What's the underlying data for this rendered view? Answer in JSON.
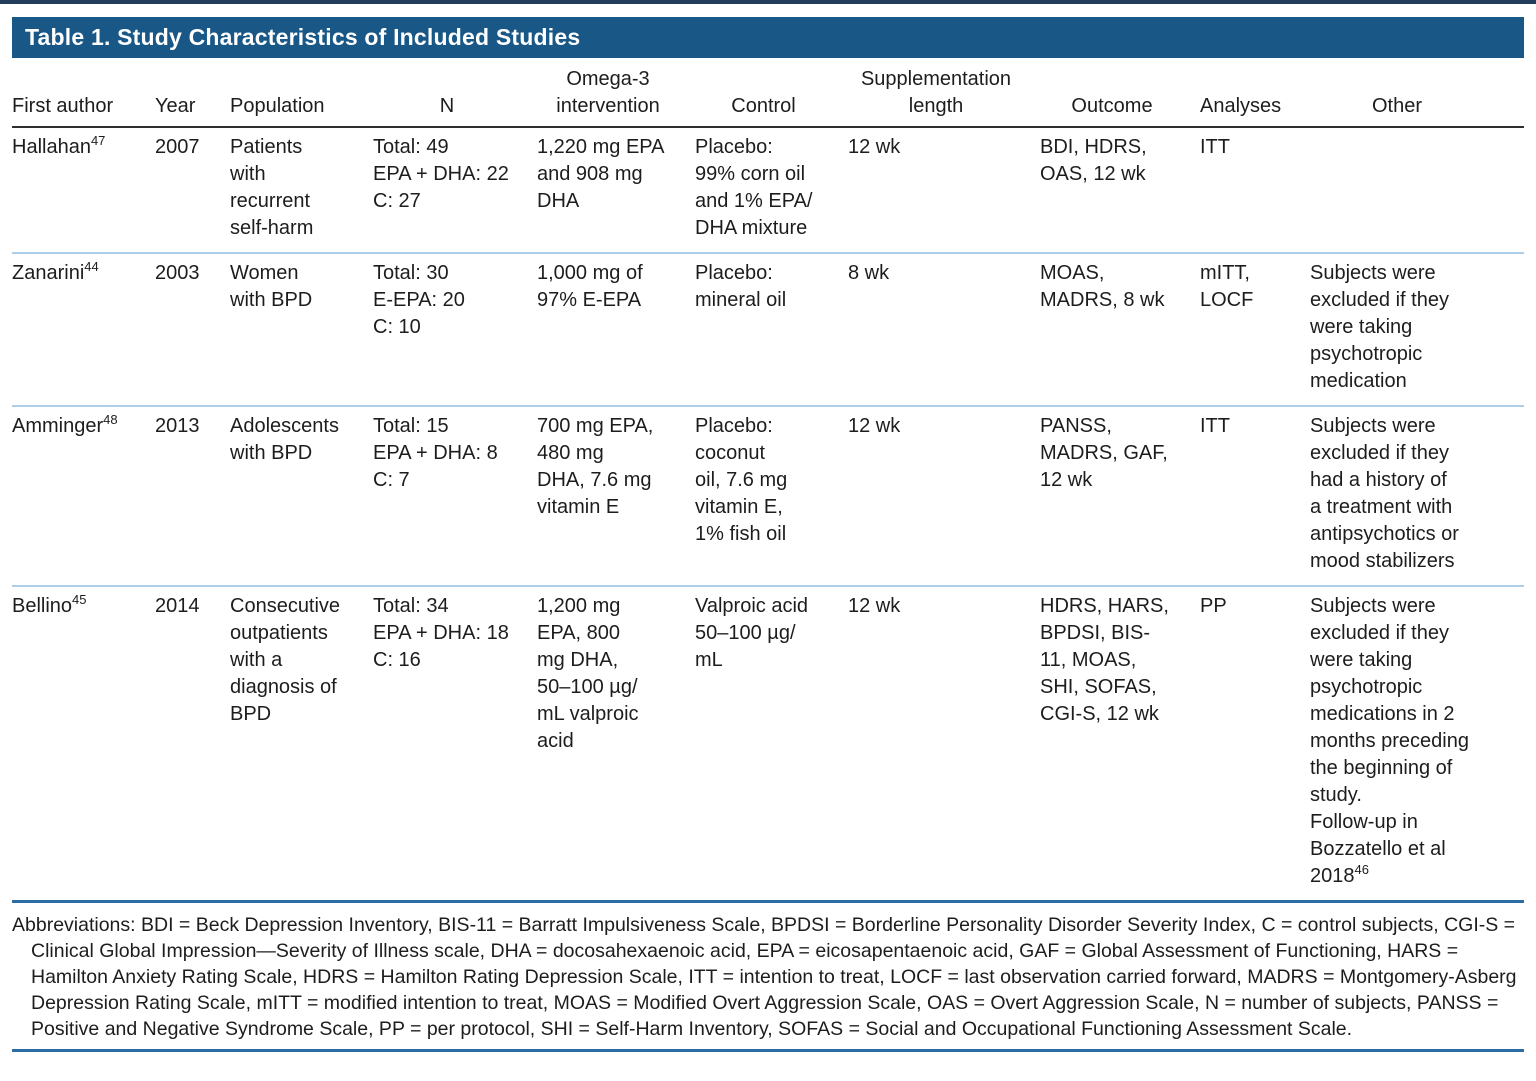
{
  "title": "Table 1. Study Characteristics of Included Studies",
  "columns": [
    "First author",
    "Year",
    "Population",
    "N",
    "Omega-3 intervention",
    "Control",
    "Supplementation length",
    "Outcome",
    "Analyses",
    "Other"
  ],
  "rows": [
    {
      "author": {
        "name": "Hallahan",
        "ref": "47"
      },
      "year": "2007",
      "population": [
        "Patients",
        "with",
        "recurrent",
        "self-harm"
      ],
      "n": [
        "Total: 49",
        "EPA + DHA: 22",
        "C: 27"
      ],
      "omega3_intervention": [
        "1,220 mg EPA",
        "and 908 mg",
        "DHA"
      ],
      "control": [
        "Placebo:",
        "99% corn oil",
        "and 1% EPA/",
        "DHA mixture"
      ],
      "supplementation_length": "12 wk",
      "outcome": [
        "BDI, HDRS,",
        "OAS, 12 wk"
      ],
      "analyses": "ITT",
      "other": "",
      "other_ref": ""
    },
    {
      "author": {
        "name": "Zanarini",
        "ref": "44"
      },
      "year": "2003",
      "population": [
        "Women",
        "with BPD"
      ],
      "n": [
        "Total: 30",
        "E-EPA: 20",
        "C: 10"
      ],
      "omega3_intervention": [
        "1,000 mg of",
        "97% E-EPA"
      ],
      "control": [
        "Placebo:",
        "mineral oil"
      ],
      "supplementation_length": "8 wk",
      "outcome": [
        "MOAS,",
        "MADRS, 8 wk"
      ],
      "analyses": [
        "mITT,",
        "LOCF"
      ],
      "other": [
        "Subjects were",
        "excluded if they",
        "were taking",
        "psychotropic",
        "medication"
      ],
      "other_ref": ""
    },
    {
      "author": {
        "name": "Amminger",
        "ref": "48"
      },
      "year": "2013",
      "population": [
        "Adolescents",
        "with BPD"
      ],
      "n": [
        "Total: 15",
        "EPA + DHA: 8",
        "C: 7"
      ],
      "omega3_intervention": [
        "700 mg EPA,",
        "480 mg",
        "DHA, 7.6 mg",
        "vitamin E"
      ],
      "control": [
        "Placebo:",
        "coconut",
        "oil, 7.6 mg",
        "vitamin E,",
        "1% fish oil"
      ],
      "supplementation_length": "12 wk",
      "outcome": [
        "PANSS,",
        "MADRS, GAF,",
        "12 wk"
      ],
      "analyses": "ITT",
      "other": [
        "Subjects were",
        "excluded if they",
        "had a history of",
        "a treatment with",
        "antipsychotics or",
        "mood stabilizers"
      ],
      "other_ref": ""
    },
    {
      "author": {
        "name": "Bellino",
        "ref": "45"
      },
      "year": "2014",
      "population": [
        "Consecutive",
        "outpatients",
        "with a",
        "diagnosis of",
        "BPD"
      ],
      "n": [
        "Total: 34",
        "EPA + DHA: 18",
        "C: 16"
      ],
      "omega3_intervention": [
        "1,200 mg",
        "EPA, 800",
        "mg DHA,",
        "50–100 µg/",
        "mL valproic",
        "acid"
      ],
      "control": [
        "Valproic acid",
        "50–100 µg/",
        "mL"
      ],
      "supplementation_length": "12 wk",
      "outcome": [
        "HDRS, HARS,",
        "BPDSI, BIS-",
        "11, MOAS,",
        "SHI, SOFAS,",
        "CGI-S, 12 wk"
      ],
      "analyses": "PP",
      "other": [
        "Subjects were",
        "excluded if they",
        "were taking",
        "psychotropic",
        "medications in 2",
        "months preceding",
        "the beginning of",
        "study.",
        "Follow-up in",
        "Bozzatello et al",
        "2018"
      ],
      "other_ref": "46"
    }
  ],
  "footnote": "Abbreviations: BDI = Beck Depression Inventory, BIS-11 = Barratt Impulsiveness Scale, BPDSI = Borderline Personality Disorder Severity Index, C = control subjects, CGI-S = Clinical Global Impression—Severity of Illness scale, DHA = docosahexaenoic acid, EPA = eicosapentaenoic acid, GAF = Global Assessment of Functioning, HARS = Hamilton Anxiety Rating Scale, HDRS = Hamilton Rating Depression Scale, ITT = intention to treat, LOCF = last observation carried forward, MADRS = Montgomery-Asberg Depression Rating Scale, mITT = modified intention to treat, MOAS = Modified Overt Aggression Scale, OAS = Overt Aggression Scale, N = number of subjects, PANSS = Positive and Negative Syndrome Scale, PP = per protocol, SHI = Self-Harm Inventory, SOFAS = Social and Occupational Functioning Assessment Scale.",
  "colors": {
    "title_bar": "#195786",
    "top_rule": "#223d5c",
    "header_rule": "#2e2e2e",
    "row_separator": "#aecde6",
    "section_rule": "#2d6ca5",
    "title_text": "#ffffff",
    "body_text": "#1d1d1f"
  }
}
